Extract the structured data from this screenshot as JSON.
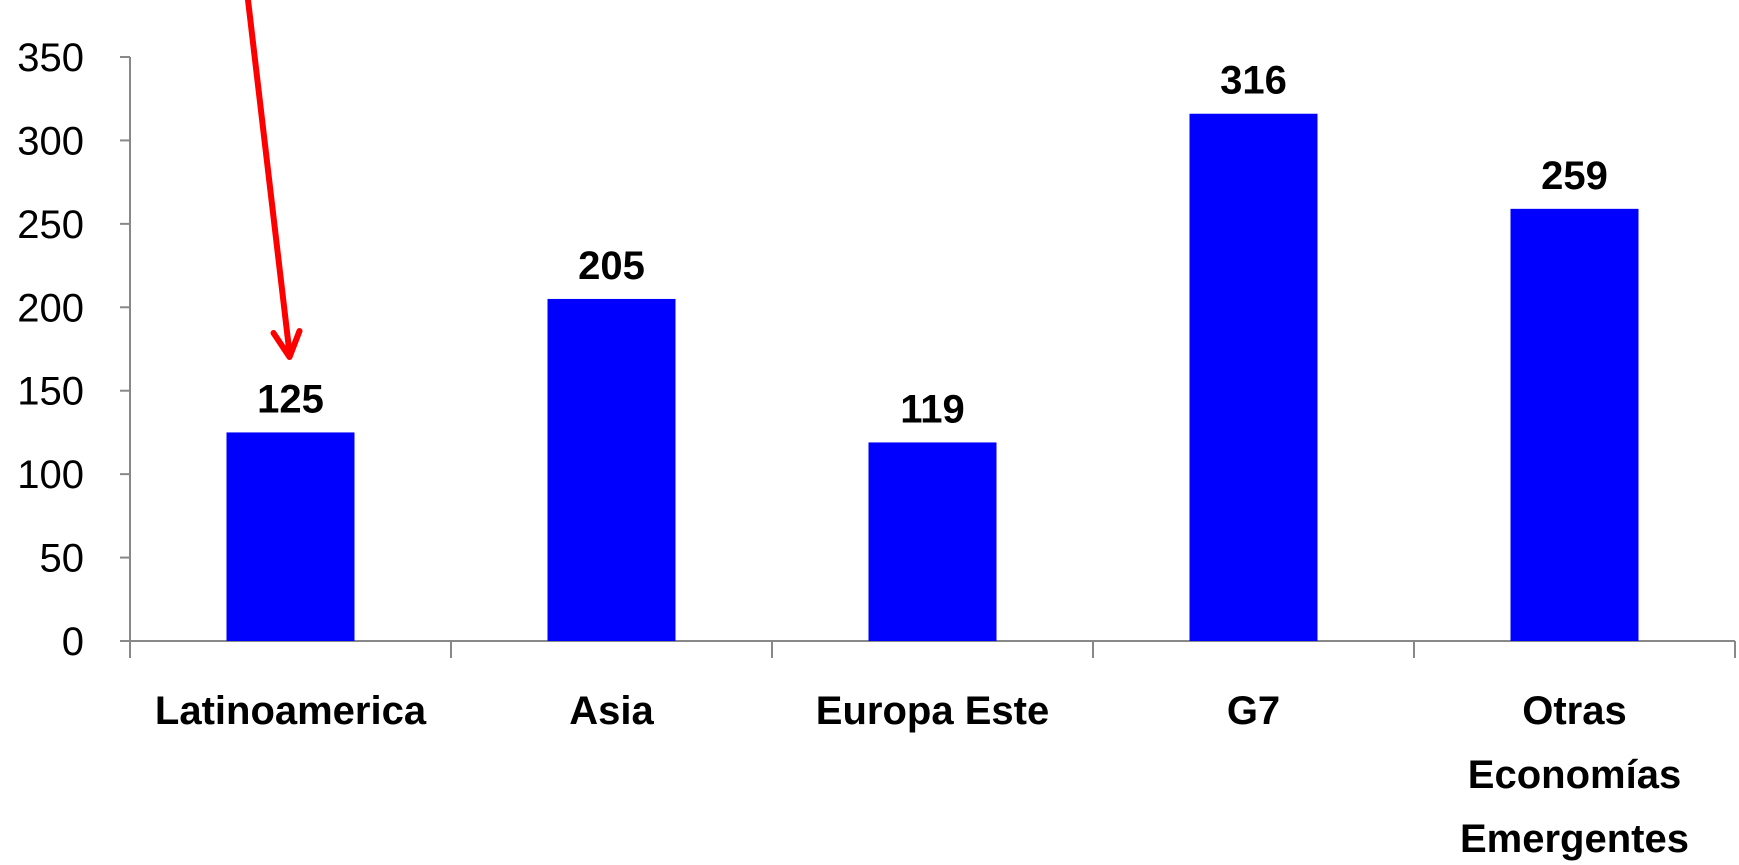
{
  "chart_data": {
    "type": "bar",
    "categories": [
      [
        "Latinoamerica"
      ],
      [
        "Asia"
      ],
      [
        "Europa Este"
      ],
      [
        "G7"
      ],
      [
        "Otras",
        "Economías",
        "Emergentes"
      ]
    ],
    "values": [
      125,
      205,
      119,
      316,
      259
    ],
    "ylim": [
      0,
      350
    ],
    "yticks": [
      0,
      50,
      100,
      150,
      200,
      250,
      300,
      350
    ],
    "grid": false,
    "bar_color": "#0000FF",
    "annotation": {
      "type": "arrow",
      "target_category_index": 0,
      "color": "#FF0000"
    }
  }
}
